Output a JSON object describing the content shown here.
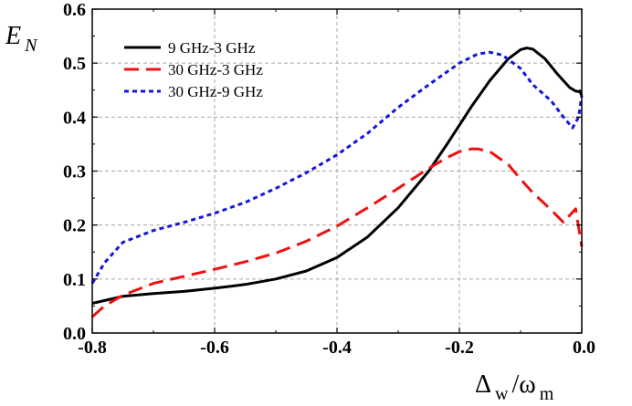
{
  "chart_data": {
    "type": "line",
    "xlabel": {
      "main": "Δ",
      "sub1": "w",
      "slash": "/ω",
      "sub2": "m"
    },
    "ylabel": {
      "main": "E",
      "sub": "N"
    },
    "xlim": [
      -0.8,
      0.0
    ],
    "ylim": [
      0.0,
      0.6
    ],
    "xticks": [
      "-0.8",
      "-0.6",
      "-0.4",
      "-0.2",
      "0.0"
    ],
    "yticks": [
      "0.0",
      "0.1",
      "0.2",
      "0.3",
      "0.4",
      "0.5",
      "0.6"
    ],
    "grid": true,
    "legend_position": "top-left",
    "series": [
      {
        "name": "9 GHz-3 GHz",
        "color": "#000000",
        "dash": "solid",
        "x": [
          -0.8,
          -0.75,
          -0.7,
          -0.65,
          -0.6,
          -0.55,
          -0.5,
          -0.45,
          -0.4,
          -0.35,
          -0.3,
          -0.25,
          -0.22,
          -0.2,
          -0.18,
          -0.15,
          -0.12,
          -0.1,
          -0.09,
          -0.08,
          -0.06,
          -0.04,
          -0.02,
          -0.01,
          -0.003,
          0.0
        ],
        "y": [
          0.055,
          0.068,
          0.073,
          0.077,
          0.083,
          0.09,
          0.1,
          0.115,
          0.14,
          0.178,
          0.232,
          0.3,
          0.35,
          0.385,
          0.42,
          0.468,
          0.508,
          0.525,
          0.528,
          0.526,
          0.508,
          0.48,
          0.455,
          0.448,
          0.447,
          0.44
        ]
      },
      {
        "name": "30 GHz-3 GHz",
        "color": "#ee1111",
        "dash": "long-dash",
        "x": [
          -0.8,
          -0.78,
          -0.75,
          -0.7,
          -0.65,
          -0.6,
          -0.55,
          -0.5,
          -0.45,
          -0.4,
          -0.35,
          -0.3,
          -0.25,
          -0.22,
          -0.2,
          -0.18,
          -0.17,
          -0.15,
          -0.12,
          -0.1,
          -0.08,
          -0.05,
          -0.03,
          -0.01,
          0.0
        ],
        "y": [
          0.03,
          0.05,
          0.07,
          0.092,
          0.105,
          0.118,
          0.132,
          0.148,
          0.17,
          0.198,
          0.232,
          0.268,
          0.305,
          0.325,
          0.336,
          0.341,
          0.341,
          0.336,
          0.312,
          0.285,
          0.26,
          0.228,
          0.205,
          0.23,
          0.16
        ]
      },
      {
        "name": "30 GHz-9 GHz",
        "color": "#1515dd",
        "dash": "short-dash",
        "x": [
          -0.8,
          -0.78,
          -0.75,
          -0.7,
          -0.65,
          -0.6,
          -0.55,
          -0.5,
          -0.45,
          -0.4,
          -0.35,
          -0.3,
          -0.25,
          -0.2,
          -0.17,
          -0.15,
          -0.13,
          -0.1,
          -0.08,
          -0.05,
          -0.03,
          -0.015,
          -0.005,
          0.0
        ],
        "y": [
          0.092,
          0.13,
          0.168,
          0.19,
          0.205,
          0.222,
          0.242,
          0.268,
          0.297,
          0.33,
          0.37,
          0.418,
          0.46,
          0.5,
          0.517,
          0.52,
          0.515,
          0.49,
          0.46,
          0.43,
          0.4,
          0.38,
          0.4,
          0.44
        ]
      }
    ]
  }
}
